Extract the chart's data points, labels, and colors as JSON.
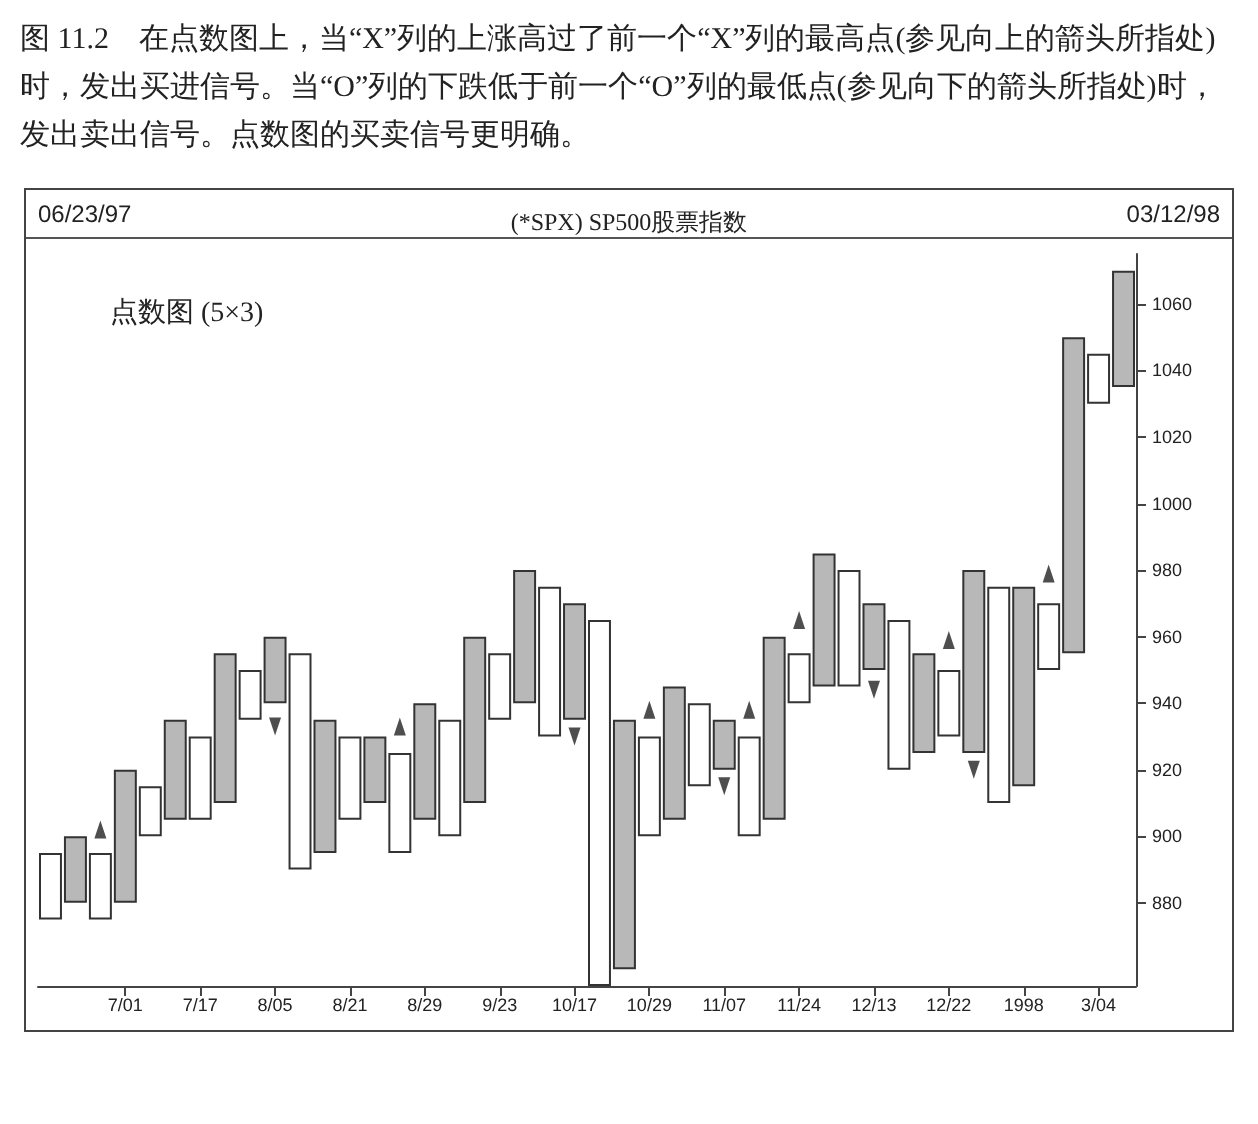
{
  "chart_data": {
    "type": "bar",
    "title": "(*SPX) SP500股票指数",
    "annotations": [
      "图 11.2　在点数图上，当“X”列的上涨高过了前一个“X”列的最高点(参见向上的箭头所指处)时，发出买进信号。当“O”列的下跌低于前一个“O”列的最低点(参见向下的箭头所指处)时，发出卖出信号。点数图的买卖信号更明确。",
      "06/23/97",
      "03/12/98",
      "点数图 (5×3)"
    ],
    "categories": [
      null,
      null,
      null,
      "7/01",
      null,
      null,
      "7/17",
      null,
      null,
      "8/05",
      null,
      null,
      "8/21",
      null,
      null,
      "8/29",
      null,
      null,
      "9/23",
      null,
      null,
      "10/17",
      null,
      null,
      "10/29",
      null,
      null,
      "11/07",
      null,
      null,
      "11/24",
      null,
      null,
      "12/13",
      null,
      null,
      "12/22",
      null,
      null,
      "1998",
      null,
      null,
      "3/04",
      null
    ],
    "series": [
      {
        "base": [
          875,
          880,
          875,
          880,
          900,
          905,
          905,
          910,
          935,
          940,
          890,
          895,
          905,
          910,
          895,
          905,
          900,
          910,
          935,
          940,
          930,
          935,
          855,
          860,
          900,
          905,
          915,
          920,
          900,
          905,
          940,
          945,
          945,
          950,
          920,
          925,
          930,
          925,
          910,
          915,
          950,
          955,
          1030,
          1035
        ],
        "colors": [
          "#ffffff",
          "#b8b8b8",
          "#ffffff",
          "#b8b8b8",
          "#ffffff",
          "#b8b8b8",
          "#ffffff",
          "#b8b8b8",
          "#ffffff",
          "#b8b8b8",
          "#ffffff",
          "#b8b8b8",
          "#ffffff",
          "#b8b8b8",
          "#ffffff",
          "#b8b8b8",
          "#ffffff",
          "#b8b8b8",
          "#ffffff",
          "#b8b8b8",
          "#ffffff",
          "#b8b8b8",
          "#ffffff",
          "#b8b8b8",
          "#ffffff",
          "#b8b8b8",
          "#ffffff",
          "#b8b8b8",
          "#ffffff",
          "#b8b8b8",
          "#ffffff",
          "#b8b8b8",
          "#ffffff",
          "#b8b8b8",
          "#ffffff",
          "#b8b8b8",
          "#ffffff",
          "#b8b8b8",
          "#ffffff",
          "#b8b8b8",
          "#ffffff",
          "#b8b8b8",
          "#ffffff",
          "#b8b8b8"
        ],
        "values": [
          20,
          20,
          20,
          40,
          15,
          30,
          25,
          45,
          15,
          20,
          65,
          40,
          25,
          20,
          30,
          35,
          35,
          50,
          20,
          40,
          45,
          35,
          110,
          75,
          30,
          40,
          25,
          15,
          30,
          55,
          15,
          40,
          35,
          20,
          45,
          30,
          20,
          55,
          65,
          60,
          20,
          95,
          15,
          35
        ]
      },
      {
        "type": "scatter",
        "color": "#222222",
        "values": [
          null,
          null,
          902,
          null,
          null,
          null,
          null,
          null,
          null,
          933,
          null,
          null,
          null,
          null,
          933,
          null,
          null,
          null,
          null,
          null,
          null,
          930,
          null,
          null,
          938,
          null,
          null,
          915,
          938,
          null,
          965,
          null,
          null,
          944,
          null,
          null,
          959,
          920,
          null,
          null,
          979,
          null,
          null,
          null
        ]
      }
    ],
    "marker": "triangle",
    "ylim": [
      855,
      1075
    ],
    "yticks": [
      880,
      900,
      920,
      940,
      960,
      980,
      1000,
      1020,
      1040,
      1060
    ],
    "grid": false
  }
}
